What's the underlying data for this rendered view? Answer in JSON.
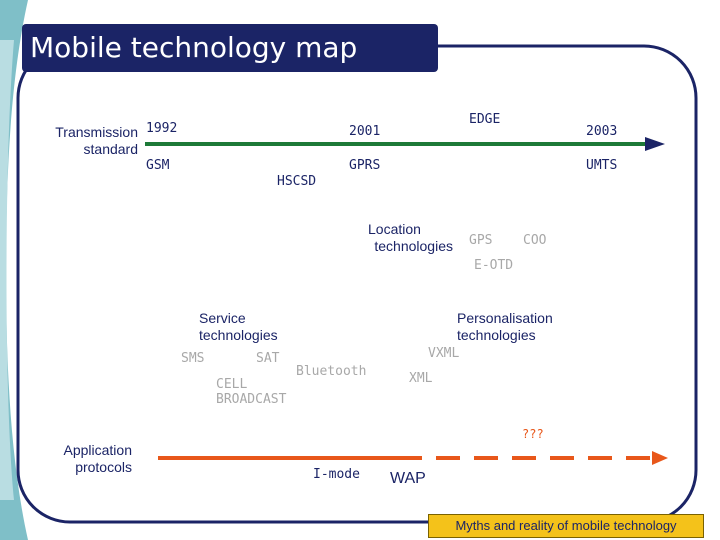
{
  "title": "Mobile technology map",
  "footer": "Myths and reality of mobile technology",
  "transmission": {
    "label_line1": "Transmission",
    "label_line2": "standard",
    "year_1992": "1992",
    "year_2001": "2001",
    "year_2003": "2003",
    "edge": "EDGE",
    "gsm": "GSM",
    "hscsd": "HSCSD",
    "gprs": "GPRS",
    "umts": "UMTS"
  },
  "location": {
    "label_line1": "Location",
    "label_line2": "technologies",
    "gps": "GPS",
    "coo": "COO",
    "eotd": "E-OTD"
  },
  "service": {
    "label_line1": "Service",
    "label_line2": "technologies",
    "sms": "SMS",
    "sat": "SAT",
    "bluetooth": "Bluetooth",
    "cell_line1": "CELL",
    "cell_line2": "BROADCAST"
  },
  "personalisation": {
    "label_line1": "Personalisation",
    "label_line2": "technologies",
    "vxml": "VXML",
    "xml": "XML"
  },
  "application": {
    "label_line1": "Application",
    "label_line2": "protocols",
    "unknown": "???",
    "imode": "I-mode",
    "wap": "WAP"
  },
  "colors": {
    "navy": "#1b2466",
    "green": "#1d7a38",
    "orange": "#e8571a",
    "grey": "#a8a8a8",
    "teal": "#7fbfc8",
    "footer_bg": "#f4c21a"
  }
}
